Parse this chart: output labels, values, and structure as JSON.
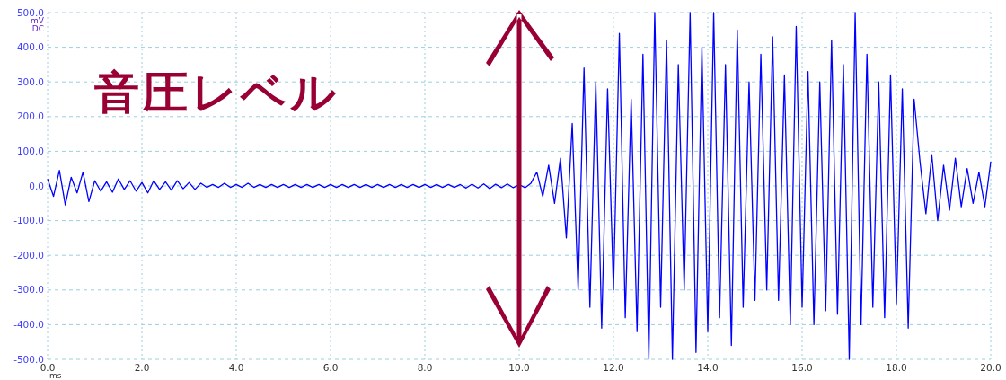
{
  "chart_data": {
    "type": "line",
    "xlabel": "ms",
    "ylabel": "mV DC",
    "annotations": [
      "音圧レベル"
    ],
    "xlim": [
      0,
      20
    ],
    "xticks": [
      {
        "value": 0,
        "label": "0.0"
      },
      {
        "value": 2,
        "label": "2.0"
      },
      {
        "value": 4,
        "label": "4.0"
      },
      {
        "value": 6,
        "label": "6.0"
      },
      {
        "value": 8,
        "label": "8.0"
      },
      {
        "value": 10,
        "label": "10.0"
      },
      {
        "value": 12,
        "label": "12.0"
      },
      {
        "value": 14,
        "label": "14.0"
      },
      {
        "value": 16,
        "label": "16.0"
      },
      {
        "value": 18,
        "label": "18.0"
      },
      {
        "value": 20,
        "label": "20.0"
      }
    ],
    "ylim": [
      -500,
      500
    ],
    "yticks": [
      {
        "value": -500,
        "label": "-500.0"
      },
      {
        "value": -400,
        "label": "-400.0"
      },
      {
        "value": -300,
        "label": "-300.0"
      },
      {
        "value": -200,
        "label": "-200.0"
      },
      {
        "value": -100,
        "label": "-100.0"
      },
      {
        "value": 0,
        "label": "0.0"
      },
      {
        "value": 100,
        "label": "100.0"
      },
      {
        "value": 200,
        "label": "200.0"
      },
      {
        "value": 300,
        "label": "300.0"
      },
      {
        "value": 400,
        "label": "400.0"
      },
      {
        "value": 500,
        "label": "500.0"
      }
    ],
    "grid": true,
    "marker": "none",
    "line_style": "solid",
    "series": [
      {
        "color": "#0000ff",
        "x": [
          0,
          0.125,
          0.25,
          0.375,
          0.5,
          0.625,
          0.75,
          0.875,
          1,
          1.125,
          1.25,
          1.375,
          1.5,
          1.625,
          1.75,
          1.875,
          2,
          2.125,
          2.25,
          2.375,
          2.5,
          2.625,
          2.75,
          2.875,
          3,
          3.125,
          3.25,
          3.375,
          3.5,
          3.625,
          3.75,
          3.875,
          4,
          4.125,
          4.25,
          4.375,
          4.5,
          4.625,
          4.75,
          4.875,
          5,
          5.125,
          5.25,
          5.375,
          5.5,
          5.625,
          5.75,
          5.875,
          6,
          6.125,
          6.25,
          6.375,
          6.5,
          6.625,
          6.75,
          6.875,
          7,
          7.125,
          7.25,
          7.375,
          7.5,
          7.625,
          7.75,
          7.875,
          8,
          8.125,
          8.25,
          8.375,
          8.5,
          8.625,
          8.75,
          8.875,
          9,
          9.125,
          9.25,
          9.375,
          9.5,
          9.625,
          9.75,
          9.875,
          10,
          10.125,
          10.25,
          10.375,
          10.5,
          10.625,
          10.75,
          10.875,
          11,
          11.125,
          11.25,
          11.375,
          11.5,
          11.625,
          11.75,
          11.875,
          12,
          12.125,
          12.25,
          12.375,
          12.5,
          12.625,
          12.75,
          12.875,
          13,
          13.125,
          13.25,
          13.375,
          13.5,
          13.625,
          13.75,
          13.875,
          14,
          14.125,
          14.25,
          14.375,
          14.5,
          14.625,
          14.75,
          14.875,
          15,
          15.125,
          15.25,
          15.375,
          15.5,
          15.625,
          15.75,
          15.875,
          16,
          16.125,
          16.25,
          16.375,
          16.5,
          16.625,
          16.75,
          16.875,
          17,
          17.125,
          17.25,
          17.375,
          17.5,
          17.625,
          17.75,
          17.875,
          18,
          18.125,
          18.25,
          18.375,
          18.5,
          18.625,
          18.75,
          18.875,
          19,
          19.125,
          19.25,
          19.375,
          19.5,
          19.625,
          19.75,
          19.875,
          20
        ],
        "values": [
          20,
          -30,
          45,
          -55,
          25,
          -20,
          40,
          -45,
          15,
          -15,
          12,
          -18,
          20,
          -10,
          15,
          -15,
          10,
          -20,
          15,
          -10,
          12,
          -12,
          15,
          -8,
          10,
          -10,
          8,
          -4,
          4,
          -4,
          8,
          -4,
          4,
          -4,
          8,
          -4,
          4,
          -4,
          4,
          -4,
          4,
          -4,
          4,
          -4,
          4,
          -4,
          4,
          -4,
          4,
          -4,
          4,
          -4,
          4,
          -4,
          4,
          -4,
          4,
          -4,
          4,
          -4,
          4,
          -4,
          4,
          -4,
          4,
          -4,
          4,
          -4,
          4,
          -4,
          4,
          -6,
          5,
          -6,
          6,
          -8,
          5,
          -5,
          6,
          -5,
          4,
          -5,
          8,
          40,
          -30,
          60,
          -50,
          80,
          -150,
          180,
          -300,
          340,
          -350,
          300,
          -410,
          280,
          -300,
          440,
          -380,
          250,
          -420,
          380,
          -500,
          500,
          -350,
          420,
          -500,
          350,
          -300,
          500,
          -480,
          400,
          -420,
          500,
          -380,
          350,
          -460,
          450,
          -350,
          300,
          -330,
          380,
          -300,
          430,
          -330,
          320,
          -400,
          460,
          -350,
          330,
          -400,
          300,
          -360,
          420,
          -370,
          350,
          -500,
          500,
          -400,
          380,
          -350,
          300,
          -380,
          320,
          -340,
          280,
          -410,
          250,
          70,
          -80,
          90,
          -100,
          60,
          -70,
          80,
          -60,
          50,
          -50,
          40,
          -60,
          70
        ]
      }
    ]
  }
}
